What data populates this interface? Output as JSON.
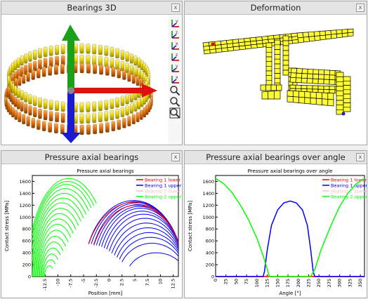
{
  "panels": {
    "bearings3d": {
      "title": "Bearings 3D",
      "close": "x"
    },
    "deformation": {
      "title": "Deformation",
      "close": "x"
    },
    "pressure": {
      "title": "Pressure axial bearings",
      "close": "x"
    },
    "pressure_angle": {
      "title": "Pressure axial bearings over angle",
      "close": "x"
    }
  },
  "toolbar_icons": [
    "view-top-icon",
    "view-front-icon",
    "view-side-icon",
    "view-iso-icon",
    "view-bottom-icon",
    "view-back-icon",
    "zoom-in-icon",
    "zoom-out-icon",
    "zoom-fit-icon"
  ],
  "colors": {
    "bearing1_lower": "#ff0000",
    "bearing1_upper": "#0000ff",
    "bearing2_lower": "#ffc0cb",
    "bearing2_upper": "#00ff00"
  },
  "chart_data": [
    {
      "type": "line",
      "title": "Pressure axial bearings",
      "xlabel": "Position [mm]",
      "ylabel": "Contact stress [MPa]",
      "xlim": [
        -15,
        13.5
      ],
      "ylim": [
        0,
        1700
      ],
      "xticks": [
        "-12.5",
        "-10",
        "-7.5",
        "-5",
        "-2.5",
        "0",
        "2.5",
        "5",
        "7.5",
        "10",
        "12.5"
      ],
      "xtick_values": [
        -12.5,
        -10,
        -7.5,
        -5,
        -2.5,
        0,
        2.5,
        5,
        7.5,
        10,
        12.5
      ],
      "yticks": [
        "0",
        "200",
        "400",
        "600",
        "800",
        "1000",
        "1200",
        "1400",
        "1600"
      ],
      "ytick_values": [
        0,
        200,
        400,
        600,
        800,
        1000,
        1200,
        1400,
        1600
      ],
      "legend": [
        "Bearing 1 lower",
        "Bearing 1 upper",
        "Bearing 2 lower",
        "Bearing 2 upper"
      ],
      "legend_position": "top-right",
      "series": [
        {
          "name": "Bearing 2 upper",
          "color": "#00ff00",
          "peak_values": [
            1650,
            1600,
            1550,
            1480,
            1400,
            1320,
            1240,
            1150,
            1060,
            970,
            880,
            780,
            680,
            580,
            480,
            380,
            280,
            180
          ],
          "x_start": -15,
          "x_end_values": [
            -2.5,
            -3,
            -3.5,
            -4,
            -4.5,
            -5,
            -5.5,
            -6,
            -6.5,
            -7,
            -7.5,
            -8,
            -8.5,
            -9,
            -9.5,
            -10,
            -10.5,
            -11
          ]
        },
        {
          "name": "Bearing 1 upper",
          "color": "#0000ff",
          "peak_values": [
            1280,
            1260,
            1240,
            1210,
            1180,
            1150,
            1100,
            1050,
            980,
            900,
            820,
            740,
            660,
            560,
            400
          ],
          "x_start_values": [
            -4,
            -3.5,
            -3,
            -2.5,
            -2,
            -1.5,
            -1,
            -0.5,
            0,
            0.5,
            1,
            1.5,
            2,
            2.5,
            4
          ],
          "x_end": 13.5
        },
        {
          "name": "Bearing 1 lower",
          "color": "#ff0000",
          "peak_values": [
            1250,
            1200
          ],
          "x_start_values": [
            -4,
            -3
          ],
          "x_end": 13.5
        },
        {
          "name": "Bearing 2 lower",
          "color": "#ffc0cb",
          "peak_values": [],
          "x_start_values": [],
          "x_end": 0
        }
      ]
    },
    {
      "type": "line",
      "title": "Pressure axial bearings over angle",
      "xlabel": "Angle [°]",
      "ylabel": "Contact stress [MPa]",
      "xlim": [
        0,
        360
      ],
      "ylim": [
        0,
        1700
      ],
      "xticks": [
        "0",
        "25",
        "50",
        "75",
        "100",
        "125",
        "150",
        "175",
        "200",
        "225",
        "250",
        "275",
        "300",
        "325",
        "350"
      ],
      "xtick_values": [
        0,
        25,
        50,
        75,
        100,
        125,
        150,
        175,
        200,
        225,
        250,
        275,
        300,
        325,
        350
      ],
      "yticks": [
        "0",
        "200",
        "400",
        "600",
        "800",
        "1000",
        "1200",
        "1400",
        "1600"
      ],
      "ytick_values": [
        0,
        200,
        400,
        600,
        800,
        1000,
        1200,
        1400,
        1600
      ],
      "legend": [
        "Bearing 1 lower",
        "Bearing 1 upper",
        "Bearing 2 lower",
        "Bearing 2 upper"
      ],
      "legend_position": "top-right",
      "series": [
        {
          "name": "Bearing 2 upper",
          "color": "#00ff00",
          "x": [
            0,
            20,
            40,
            60,
            80,
            100,
            115,
            125,
            130,
            230,
            240,
            255,
            280,
            300,
            320,
            340,
            360
          ],
          "y": [
            1650,
            1560,
            1410,
            1200,
            950,
            640,
            350,
            120,
            0,
            0,
            120,
            450,
            880,
            1180,
            1400,
            1560,
            1650
          ]
        },
        {
          "name": "Bearing 1 upper",
          "color": "#0000ff",
          "x": [
            0,
            115,
            118,
            125,
            135,
            150,
            165,
            180,
            195,
            210,
            222,
            230,
            236,
            240,
            360
          ],
          "y": [
            0,
            0,
            80,
            450,
            860,
            1120,
            1240,
            1270,
            1240,
            1120,
            860,
            450,
            80,
            0,
            0
          ]
        },
        {
          "name": "Bearing 1 lower",
          "color": "#ff0000",
          "x": [
            0,
            360
          ],
          "y": [
            0,
            0
          ]
        },
        {
          "name": "Bearing 2 lower",
          "color": "#ffc0cb",
          "x": [
            0,
            360
          ],
          "y": [
            0,
            0
          ]
        }
      ]
    }
  ]
}
